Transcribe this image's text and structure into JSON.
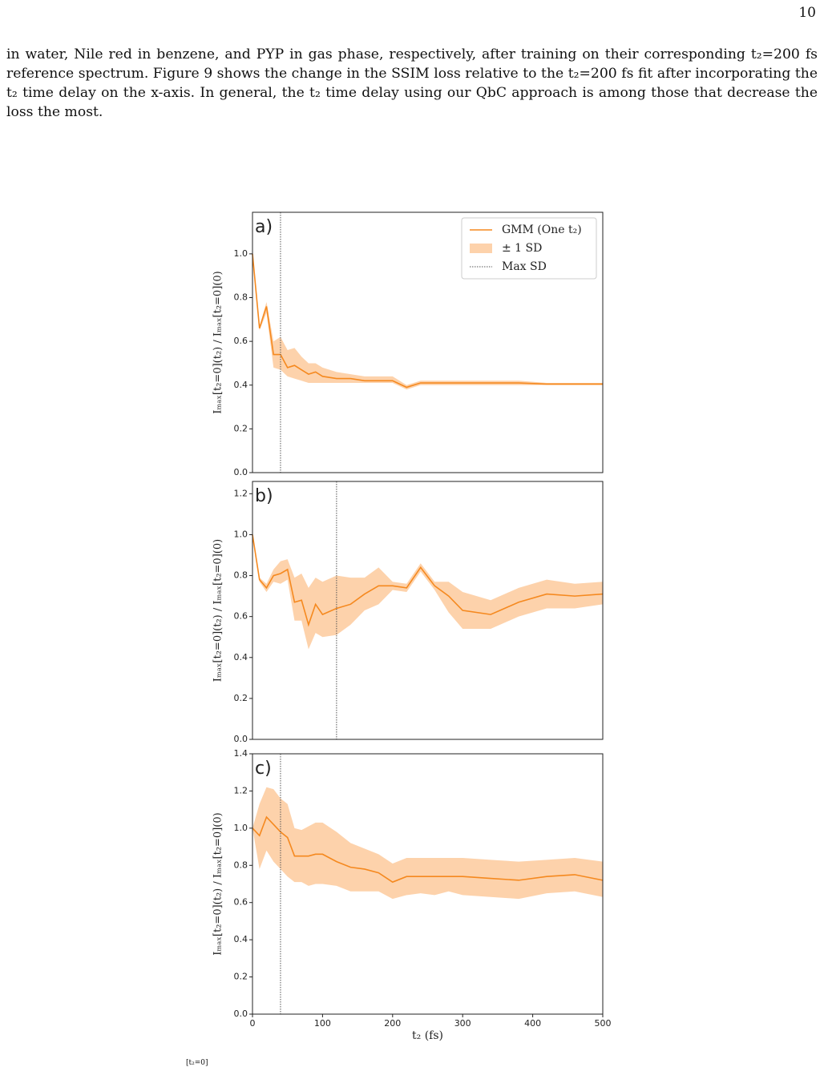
{
  "page_number": "10",
  "paragraph": [
    "in water, Nile red in benzene, and PYP in gas phase, respectively, after training on their corresponding t₂=200 fs",
    "reference spectrum. Figure 9 shows the change in the SSIM loss relative to the t₂=200 fs fit after incorporating the",
    "t₂ time delay on the x-axis. In general, the t₂ time delay using our QbC approach is among those that decrease the",
    "loss the most."
  ],
  "footer_fragment": "[t₂=0]",
  "chart_data": [
    {
      "type": "line",
      "label": "a)",
      "ylabel": "Iₘₐₓ[t₂=0](t₂) / Iₘₐₓ[t₂=0](0)",
      "x": [
        0,
        10,
        20,
        30,
        40,
        50,
        60,
        70,
        80,
        90,
        100,
        120,
        140,
        160,
        180,
        200,
        220,
        240,
        260,
        280,
        300,
        340,
        380,
        420,
        460,
        500
      ],
      "xlim": [
        0,
        500
      ],
      "ylim": [
        0,
        1.19
      ],
      "yticks": [
        {
          "value": 0,
          "label": "0.0"
        },
        {
          "value": 0.2,
          "label": "0.2"
        },
        {
          "value": 0.4,
          "label": "0.4"
        },
        {
          "value": 0.6,
          "label": "0.6"
        },
        {
          "value": 0.8,
          "label": "0.8"
        },
        {
          "value": 1,
          "label": "1.0"
        }
      ],
      "series": [
        {
          "name": "GMM (One t₂)",
          "color": "#f5891f",
          "values": [
            1.0,
            0.66,
            0.76,
            0.54,
            0.54,
            0.48,
            0.49,
            0.47,
            0.45,
            0.46,
            0.44,
            0.43,
            0.43,
            0.42,
            0.42,
            0.42,
            0.39,
            0.41,
            0.41,
            0.41,
            0.41,
            0.41,
            0.41,
            0.405,
            0.405,
            0.405
          ]
        }
      ],
      "band": {
        "name": "± 1 SD",
        "color": "#fdd2ab",
        "lower": [
          1.0,
          0.65,
          0.73,
          0.48,
          0.47,
          0.44,
          0.43,
          0.42,
          0.41,
          0.41,
          0.41,
          0.41,
          0.41,
          0.41,
          0.41,
          0.41,
          0.38,
          0.4,
          0.4,
          0.4,
          0.4,
          0.4,
          0.4,
          0.4,
          0.4,
          0.4
        ],
        "upper": [
          1.0,
          0.67,
          0.78,
          0.6,
          0.62,
          0.56,
          0.57,
          0.53,
          0.5,
          0.5,
          0.48,
          0.46,
          0.45,
          0.44,
          0.44,
          0.44,
          0.4,
          0.42,
          0.42,
          0.42,
          0.42,
          0.42,
          0.42,
          0.41,
          0.41,
          0.41
        ]
      },
      "vline": {
        "name": "Max SD",
        "x": 40,
        "color": "#555555"
      },
      "legend": "upper right"
    },
    {
      "type": "line",
      "label": "b)",
      "ylabel": "Iₘₐₓ[t₂=0](t₂) / Iₘₐₓ[t₂=0](0)",
      "x": [
        0,
        10,
        20,
        30,
        40,
        50,
        60,
        70,
        80,
        90,
        100,
        120,
        140,
        160,
        180,
        200,
        220,
        240,
        260,
        280,
        300,
        340,
        380,
        420,
        460,
        500
      ],
      "xlim": [
        0,
        500
      ],
      "ylim": [
        0,
        1.26
      ],
      "yticks": [
        {
          "value": 0,
          "label": "0.0"
        },
        {
          "value": 0.2,
          "label": "0.2"
        },
        {
          "value": 0.4,
          "label": "0.4"
        },
        {
          "value": 0.6,
          "label": "0.6"
        },
        {
          "value": 0.8,
          "label": "0.8"
        },
        {
          "value": 1,
          "label": "1.0"
        },
        {
          "value": 1.2,
          "label": "1.2"
        }
      ],
      "series": [
        {
          "color": "#f5891f",
          "values": [
            1.0,
            0.78,
            0.74,
            0.8,
            0.81,
            0.83,
            0.67,
            0.68,
            0.56,
            0.66,
            0.61,
            0.64,
            0.66,
            0.71,
            0.75,
            0.75,
            0.74,
            0.84,
            0.75,
            0.7,
            0.63,
            0.61,
            0.67,
            0.71,
            0.7,
            0.71
          ]
        }
      ],
      "band": {
        "color": "#fdd2ab",
        "lower": [
          1.0,
          0.77,
          0.72,
          0.77,
          0.76,
          0.78,
          0.58,
          0.58,
          0.44,
          0.52,
          0.5,
          0.51,
          0.56,
          0.63,
          0.66,
          0.73,
          0.72,
          0.82,
          0.73,
          0.62,
          0.54,
          0.54,
          0.6,
          0.64,
          0.64,
          0.66
        ],
        "upper": [
          1.0,
          0.79,
          0.76,
          0.83,
          0.87,
          0.88,
          0.79,
          0.81,
          0.74,
          0.79,
          0.77,
          0.8,
          0.79,
          0.79,
          0.84,
          0.77,
          0.76,
          0.86,
          0.77,
          0.77,
          0.72,
          0.68,
          0.74,
          0.78,
          0.76,
          0.77
        ]
      },
      "vline": {
        "x": 120,
        "color": "#555555"
      }
    },
    {
      "type": "line",
      "label": "c)",
      "ylabel": "Iₘₐₓ[t₂=0](t₂) / Iₘₐₓ[t₂=0](0)",
      "xlabel": "t₂ (fs)",
      "x": [
        0,
        10,
        20,
        30,
        40,
        50,
        60,
        70,
        80,
        90,
        100,
        120,
        140,
        160,
        180,
        200,
        220,
        240,
        260,
        280,
        300,
        340,
        380,
        420,
        460,
        500
      ],
      "xlim": [
        0,
        500
      ],
      "ylim": [
        0,
        1.4
      ],
      "xticks": [
        0,
        100,
        200,
        300,
        400,
        500
      ],
      "yticks": [
        {
          "value": 0,
          "label": "0.0"
        },
        {
          "value": 0.2,
          "label": "0.2"
        },
        {
          "value": 0.4,
          "label": "0.4"
        },
        {
          "value": 0.6,
          "label": "0.6"
        },
        {
          "value": 0.8,
          "label": "0.8"
        },
        {
          "value": 1,
          "label": "1.0"
        },
        {
          "value": 1.2,
          "label": "1.2"
        },
        {
          "value": 1.4,
          "label": "1.4"
        }
      ],
      "series": [
        {
          "color": "#f5891f",
          "values": [
            1.0,
            0.96,
            1.06,
            1.02,
            0.98,
            0.95,
            0.85,
            0.85,
            0.85,
            0.86,
            0.86,
            0.82,
            0.79,
            0.78,
            0.76,
            0.71,
            0.74,
            0.74,
            0.74,
            0.74,
            0.74,
            0.73,
            0.72,
            0.74,
            0.75,
            0.72
          ]
        }
      ],
      "band": {
        "color": "#fdd2ab",
        "lower": [
          1.0,
          0.78,
          0.88,
          0.82,
          0.78,
          0.74,
          0.71,
          0.71,
          0.69,
          0.7,
          0.7,
          0.69,
          0.66,
          0.66,
          0.66,
          0.62,
          0.64,
          0.65,
          0.64,
          0.66,
          0.64,
          0.63,
          0.62,
          0.65,
          0.66,
          0.63
        ],
        "upper": [
          1.0,
          1.13,
          1.22,
          1.21,
          1.16,
          1.13,
          1.0,
          0.99,
          1.01,
          1.03,
          1.03,
          0.98,
          0.92,
          0.89,
          0.86,
          0.81,
          0.84,
          0.84,
          0.84,
          0.84,
          0.84,
          0.83,
          0.82,
          0.83,
          0.84,
          0.82
        ]
      },
      "vline": {
        "x": 40,
        "color": "#555555"
      }
    }
  ]
}
